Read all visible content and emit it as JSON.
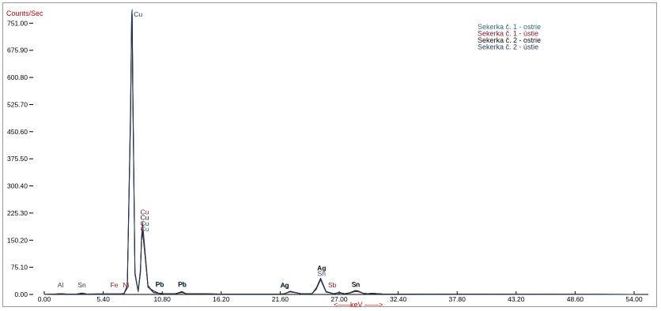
{
  "chart_data": {
    "type": "line",
    "ylabel": "Counts/Sec",
    "xlabel": "keV",
    "xlim": [
      0,
      54
    ],
    "ylim": [
      0,
      778
    ],
    "x_ticks": [
      "0.00",
      "5.40",
      "10.80",
      "16.20",
      "21.60",
      "27.00",
      "32.40",
      "37.80",
      "43.20",
      "48.60",
      "54.00"
    ],
    "y_ticks": [
      "0.00",
      "75.10",
      "150.20",
      "225.30",
      "300.40",
      "375.50",
      "450.60",
      "525.70",
      "600.80",
      "675.90",
      "751.00"
    ],
    "grid": false,
    "legend_position": "top-right",
    "series": [
      {
        "name": "Sekerka č. 1 - ostrie",
        "color": "#2f6f7a",
        "x": [
          0,
          1.0,
          1.5,
          2.0,
          2.4,
          3.0,
          3.44,
          3.9,
          5.0,
          6.4,
          7.0,
          7.3,
          7.6,
          7.9,
          8.0,
          8.05,
          8.1,
          8.3,
          8.6,
          8.8,
          8.9,
          9.0,
          9.2,
          9.5,
          10.0,
          10.5,
          11.0,
          12.0,
          12.6,
          13.0,
          14.0,
          16.0,
          18.0,
          20.0,
          21.6,
          22.0,
          22.5,
          23.5,
          24.5,
          24.9,
          25.3,
          25.8,
          26.5,
          27.0,
          27.5,
          28.0,
          28.5,
          28.8,
          29.2,
          29.6,
          30.0,
          31.0,
          33.0,
          54.0
        ],
        "y": [
          0,
          1,
          2,
          1,
          1,
          1,
          3,
          1,
          1,
          1,
          1,
          2,
          20,
          500,
          780,
          790,
          600,
          60,
          8,
          60,
          150,
          170,
          120,
          20,
          5,
          3,
          2,
          2,
          6,
          2,
          2,
          1,
          1,
          1,
          1,
          2,
          8,
          2,
          2,
          15,
          40,
          6,
          2,
          4,
          2,
          4,
          10,
          8,
          3,
          2,
          3,
          1,
          1,
          0
        ]
      },
      {
        "name": "Sekerka č. 1 - ústie",
        "color": "#8b1a2b",
        "x": [
          0,
          1.0,
          1.5,
          2.0,
          2.4,
          3.0,
          3.44,
          3.9,
          5.0,
          6.4,
          7.0,
          7.3,
          7.6,
          7.9,
          8.0,
          8.05,
          8.1,
          8.3,
          8.6,
          8.8,
          8.9,
          9.0,
          9.2,
          9.5,
          10.0,
          10.5,
          11.0,
          12.0,
          12.6,
          13.0,
          14.0,
          16.0,
          18.0,
          20.0,
          21.6,
          22.0,
          22.5,
          23.5,
          24.5,
          24.9,
          25.3,
          25.8,
          26.5,
          27.0,
          27.5,
          28.0,
          28.5,
          28.8,
          29.2,
          29.6,
          30.0,
          31.0,
          33.0,
          54.0
        ],
        "y": [
          0,
          1,
          2,
          1,
          1,
          1,
          3,
          1,
          2,
          2,
          2,
          3,
          25,
          520,
          755,
          760,
          580,
          60,
          10,
          70,
          160,
          200,
          130,
          25,
          5,
          3,
          2,
          2,
          5,
          2,
          2,
          1,
          1,
          1,
          1,
          2,
          7,
          2,
          2,
          14,
          42,
          8,
          2,
          6,
          2,
          4,
          8,
          7,
          3,
          2,
          3,
          1,
          1,
          0
        ]
      },
      {
        "name": "Sekerka č. 2 - ostrie",
        "color": "#111111",
        "x": [
          0,
          1.0,
          1.5,
          2.0,
          2.4,
          3.0,
          3.44,
          3.9,
          5.0,
          6.4,
          7.0,
          7.3,
          7.6,
          7.9,
          8.0,
          8.05,
          8.1,
          8.3,
          8.6,
          8.8,
          8.9,
          9.0,
          9.2,
          9.5,
          10.0,
          10.5,
          11.0,
          12.0,
          12.6,
          13.0,
          14.0,
          16.0,
          18.0,
          20.0,
          21.6,
          22.0,
          22.5,
          23.5,
          24.5,
          24.9,
          25.3,
          25.8,
          26.5,
          27.0,
          27.5,
          28.0,
          28.5,
          28.8,
          29.2,
          29.6,
          30.0,
          31.0,
          33.0,
          54.0
        ],
        "y": [
          0,
          1,
          2,
          1,
          1,
          1,
          4,
          1,
          1,
          1,
          1,
          2,
          18,
          480,
          740,
          748,
          560,
          55,
          8,
          60,
          150,
          175,
          115,
          20,
          10,
          3,
          2,
          2,
          8,
          2,
          2,
          1,
          1,
          1,
          1,
          2,
          8,
          2,
          2,
          18,
          45,
          8,
          2,
          5,
          2,
          5,
          11,
          9,
          3,
          2,
          3,
          1,
          1,
          0
        ]
      },
      {
        "name": "Sekerka č. 2 - ústie",
        "color": "#1f3b5a",
        "x": [
          0,
          1.0,
          1.5,
          2.0,
          2.4,
          3.0,
          3.44,
          3.9,
          5.0,
          6.4,
          7.0,
          7.3,
          7.6,
          7.9,
          8.0,
          8.05,
          8.1,
          8.3,
          8.6,
          8.8,
          8.9,
          9.0,
          9.2,
          9.5,
          10.0,
          10.5,
          11.0,
          12.0,
          12.6,
          13.0,
          14.0,
          16.0,
          18.0,
          20.0,
          21.6,
          22.0,
          22.5,
          23.5,
          24.5,
          24.9,
          25.3,
          25.8,
          26.5,
          27.0,
          27.5,
          28.0,
          28.5,
          28.8,
          29.2,
          29.6,
          30.0,
          31.0,
          33.0,
          54.0
        ],
        "y": [
          0,
          1,
          2,
          1,
          1,
          1,
          3,
          1,
          1,
          1,
          1,
          2,
          22,
          500,
          770,
          775,
          590,
          58,
          9,
          62,
          155,
          180,
          118,
          22,
          6,
          3,
          2,
          2,
          6,
          2,
          2,
          1,
          1,
          1,
          1,
          2,
          9,
          2,
          2,
          16,
          43,
          7,
          2,
          5,
          2,
          4,
          9,
          8,
          3,
          2,
          3,
          1,
          1,
          0
        ]
      }
    ],
    "annotations": [
      {
        "text": "Al",
        "x": 1.49,
        "y": 20,
        "color": "#1f3b5a"
      },
      {
        "text": "Sn",
        "x": 3.44,
        "y": 20,
        "color": "#333333"
      },
      {
        "text": "Fe",
        "x": 6.4,
        "y": 20,
        "color": "#8b1a2b"
      },
      {
        "text": "Ni",
        "x": 7.48,
        "y": 20,
        "color": "#8b1a2b"
      },
      {
        "text": "Pb",
        "x": 10.55,
        "y": 22,
        "color": "#111111"
      },
      {
        "text": "Pb",
        "x": 12.61,
        "y": 22,
        "color": "#111111"
      },
      {
        "text": "Ag",
        "x": 21.99,
        "y": 20,
        "color": "#1f3b5a"
      },
      {
        "text": "Sb",
        "x": 26.36,
        "y": 20,
        "color": "#8b1a2b"
      },
      {
        "text": "Sn",
        "x": 28.49,
        "y": 22,
        "color": "#1f3b5a"
      }
    ],
    "peak_annotations": [
      {
        "stack": [
          "Cu"
        ],
        "x": 8.05,
        "color": "#1f3b5a",
        "anchor_y": 790
      },
      {
        "stack": [
          "Cu",
          "Cu",
          "Cu",
          "Cu"
        ],
        "x": 8.9,
        "colors": [
          "#8b1a2b",
          "#111111",
          "#1f3b5a",
          "#2f6f7a"
        ],
        "anchor_y": 200
      },
      {
        "stack": [
          "Ag",
          "Sn"
        ],
        "x": 25.1,
        "colors": [
          "#111111",
          "#1f3b5a"
        ],
        "anchor_y": 45
      }
    ],
    "overlaid_labels": [
      {
        "text": "Pb",
        "x": 10.55,
        "y": 22,
        "color": "#1f3b5a"
      },
      {
        "text": "Pb",
        "x": 12.61,
        "y": 22,
        "color": "#1f3b5a"
      },
      {
        "text": "Ag",
        "x": 21.99,
        "y": 20,
        "color": "#111111"
      },
      {
        "text": "Sn",
        "x": 28.49,
        "y": 22,
        "color": "#111111"
      }
    ]
  }
}
